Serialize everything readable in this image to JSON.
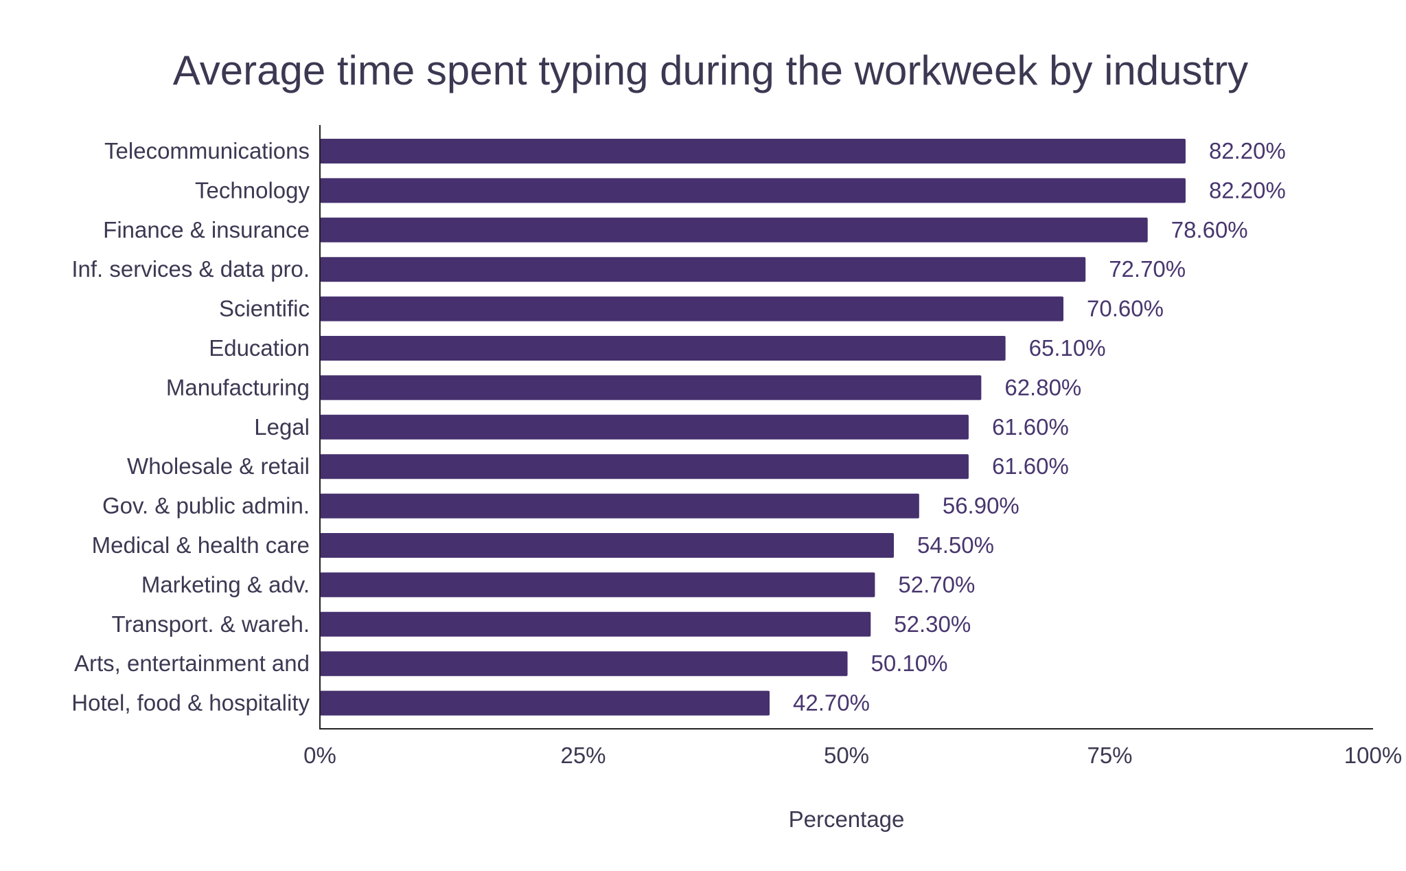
{
  "chart_data": {
    "type": "bar",
    "orientation": "horizontal",
    "title": "Average time spent typing during the workweek by industry",
    "xlabel": "Percentage",
    "ylabel": "",
    "xlim": [
      0,
      100
    ],
    "x_ticks": [
      0,
      25,
      50,
      75,
      100
    ],
    "x_tick_labels": [
      "0%",
      "25%",
      "50%",
      "75%",
      "100%"
    ],
    "grid": false,
    "legend": "none",
    "bar_color": "#46306e",
    "categories": [
      "Telecommunications",
      "Technology",
      "Finance & insurance",
      "Inf. services & data pro.",
      "Scientific",
      "Education",
      "Manufacturing",
      "Legal",
      "Wholesale & retail",
      "Gov. & public admin.",
      "Medical & health care",
      "Marketing & adv.",
      "Transport. & wareh.",
      "Arts, entertainment and",
      "Hotel, food & hospitality"
    ],
    "values": [
      82.2,
      82.2,
      78.6,
      72.7,
      70.6,
      65.1,
      62.8,
      61.6,
      61.6,
      56.9,
      54.5,
      52.7,
      52.3,
      50.1,
      42.7
    ],
    "value_labels": [
      "82.20%",
      "82.20%",
      "78.60%",
      "72.70%",
      "70.60%",
      "65.10%",
      "62.80%",
      "61.60%",
      "61.60%",
      "56.90%",
      "54.50%",
      "52.70%",
      "52.30%",
      "50.10%",
      "42.70%"
    ]
  }
}
